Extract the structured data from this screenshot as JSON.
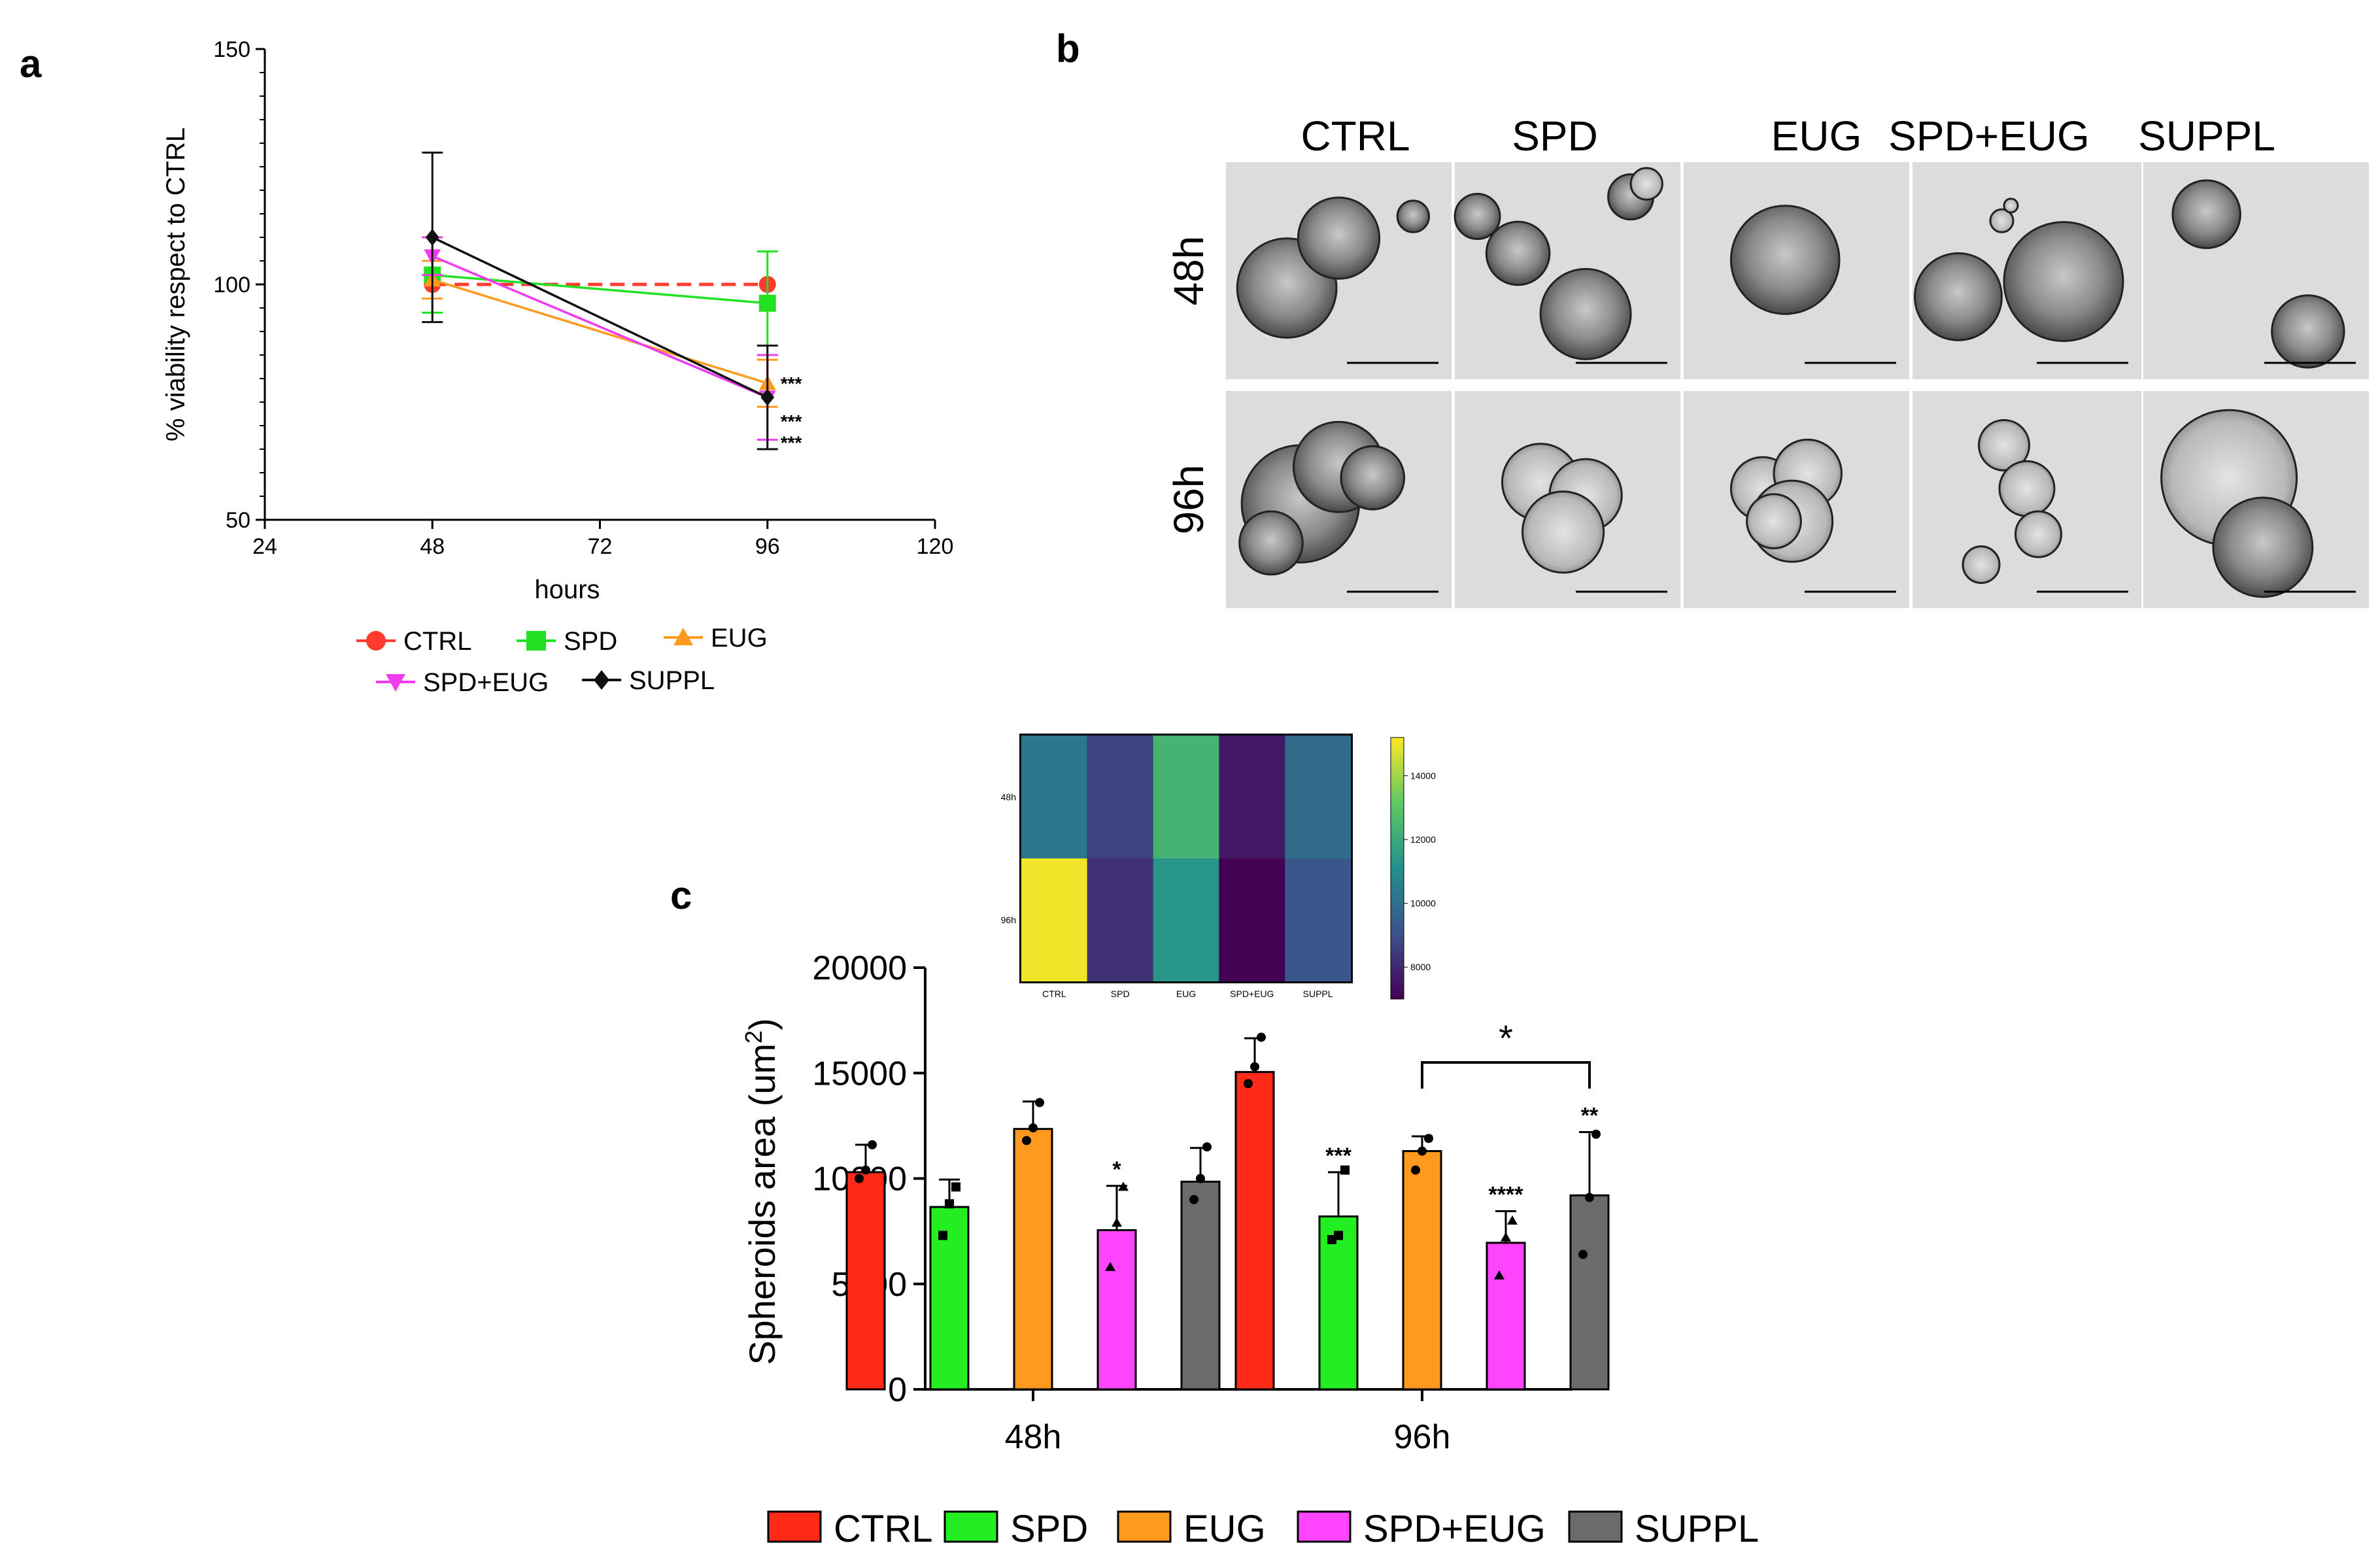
{
  "chart_data": [
    {
      "panel": "a",
      "type": "line",
      "title": "",
      "xlabel": "hours",
      "ylabel": "% viability respect to CTRL",
      "x": [
        48,
        96
      ],
      "xlim": [
        24,
        120
      ],
      "ylim": [
        50,
        150
      ],
      "xticks": [
        "24",
        "48",
        "72",
        "96",
        "120"
      ],
      "yticks": [
        "50",
        "100",
        "150"
      ],
      "series": [
        {
          "name": "CTRL",
          "color": "#ff3b2f",
          "marker": "circle",
          "dashed": true,
          "values": [
            100,
            100
          ],
          "err": [
            0,
            0
          ]
        },
        {
          "name": "SPD",
          "color": "#22e022",
          "marker": "square",
          "dashed": false,
          "values": [
            102,
            96
          ],
          "err": [
            8,
            11
          ]
        },
        {
          "name": "EUG",
          "color": "#ff9a1f",
          "marker": "triangle-up",
          "dashed": false,
          "values": [
            101,
            79
          ],
          "err": [
            4,
            5
          ]
        },
        {
          "name": "SPD+EUG",
          "color": "#f03cf0",
          "marker": "triangle-down",
          "dashed": false,
          "values": [
            106,
            76
          ],
          "err": [
            4,
            9
          ]
        },
        {
          "name": "SUPPL",
          "color": "#111111",
          "marker": "diamond",
          "dashed": false,
          "values": [
            110,
            76
          ],
          "err": [
            18,
            11
          ]
        }
      ],
      "annotations": [
        "***",
        "***",
        "***"
      ]
    },
    {
      "panel": "c",
      "type": "bar",
      "title": "",
      "xlabel": "",
      "ylabel": "Spheroids area (um",
      "ylabel_sup": "2",
      "ylabel_end": ")",
      "categories": [
        "48h",
        "96h"
      ],
      "ylim": [
        0,
        20000
      ],
      "yticks": [
        "0",
        "5000",
        "10000",
        "15000",
        "20000"
      ],
      "series": [
        {
          "name": "CTRL",
          "color": "#ff2a17",
          "values": [
            10300,
            15050
          ],
          "err": [
            1300,
            1600
          ],
          "points": [
            [
              10000,
              10400,
              11600
            ],
            [
              14500,
              15300,
              16700
            ]
          ],
          "sig": [
            "",
            ""
          ]
        },
        {
          "name": "SPD",
          "color": "#22ee22",
          "values": [
            8650,
            8200
          ],
          "err": [
            1300,
            2100
          ],
          "points": [
            [
              7300,
              8800,
              9600
            ],
            [
              7100,
              7300,
              10400
            ]
          ],
          "sig": [
            "",
            "***"
          ]
        },
        {
          "name": "EUG",
          "color": "#ff9a1f",
          "values": [
            12350,
            11300
          ],
          "err": [
            1300,
            700
          ],
          "points": [
            [
              11800,
              12400,
              13600
            ],
            [
              10400,
              11300,
              11900
            ]
          ],
          "sig": [
            "",
            ""
          ]
        },
        {
          "name": "SPD+EUG",
          "color": "#ff44ff",
          "values": [
            7550,
            6950
          ],
          "err": [
            2100,
            1500
          ],
          "points": [
            [
              5800,
              7900,
              9600
            ],
            [
              5400,
              7200,
              8000
            ]
          ],
          "sig": [
            "*",
            "****"
          ]
        },
        {
          "name": "SUPPL",
          "color": "#6b6b6b",
          "values": [
            9850,
            9200
          ],
          "err": [
            1600,
            3000
          ],
          "points": [
            [
              9000,
              10000,
              11500
            ],
            [
              6400,
              9100,
              12100
            ]
          ],
          "sig": [
            "",
            "**"
          ]
        }
      ],
      "bracket": {
        "from": "EUG",
        "to": "SUPPL",
        "group": "96h",
        "label": "*"
      }
    },
    {
      "panel": "c-inset",
      "type": "heatmap",
      "columns": [
        "CTRL",
        "SPD",
        "EUG",
        "SPD+EUG",
        "SUPPL"
      ],
      "rows": [
        "48h",
        "96h"
      ],
      "values": [
        [
          10300,
          8650,
          12350,
          7550,
          9850
        ],
        [
          15050,
          8200,
          11300,
          6950,
          9200
        ]
      ],
      "colorbar_ticks": [
        "14000",
        "12000",
        "10000",
        "8000"
      ],
      "colorbar_range": [
        7000,
        15200
      ]
    }
  ],
  "panel_a": {
    "letter": "a",
    "legend": [
      "CTRL",
      "SPD",
      "EUG",
      "SPD+EUG",
      "SUPPL"
    ]
  },
  "panel_b": {
    "letter": "b",
    "columns": [
      "CTRL",
      "SPD",
      "EUG",
      "SPD+EUG",
      "SUPPL"
    ],
    "rows": [
      "48h",
      "96h"
    ]
  },
  "panel_c": {
    "letter": "c",
    "legend": [
      "CTRL",
      "SPD",
      "EUG",
      "SPD+EUG",
      "SUPPL"
    ]
  }
}
